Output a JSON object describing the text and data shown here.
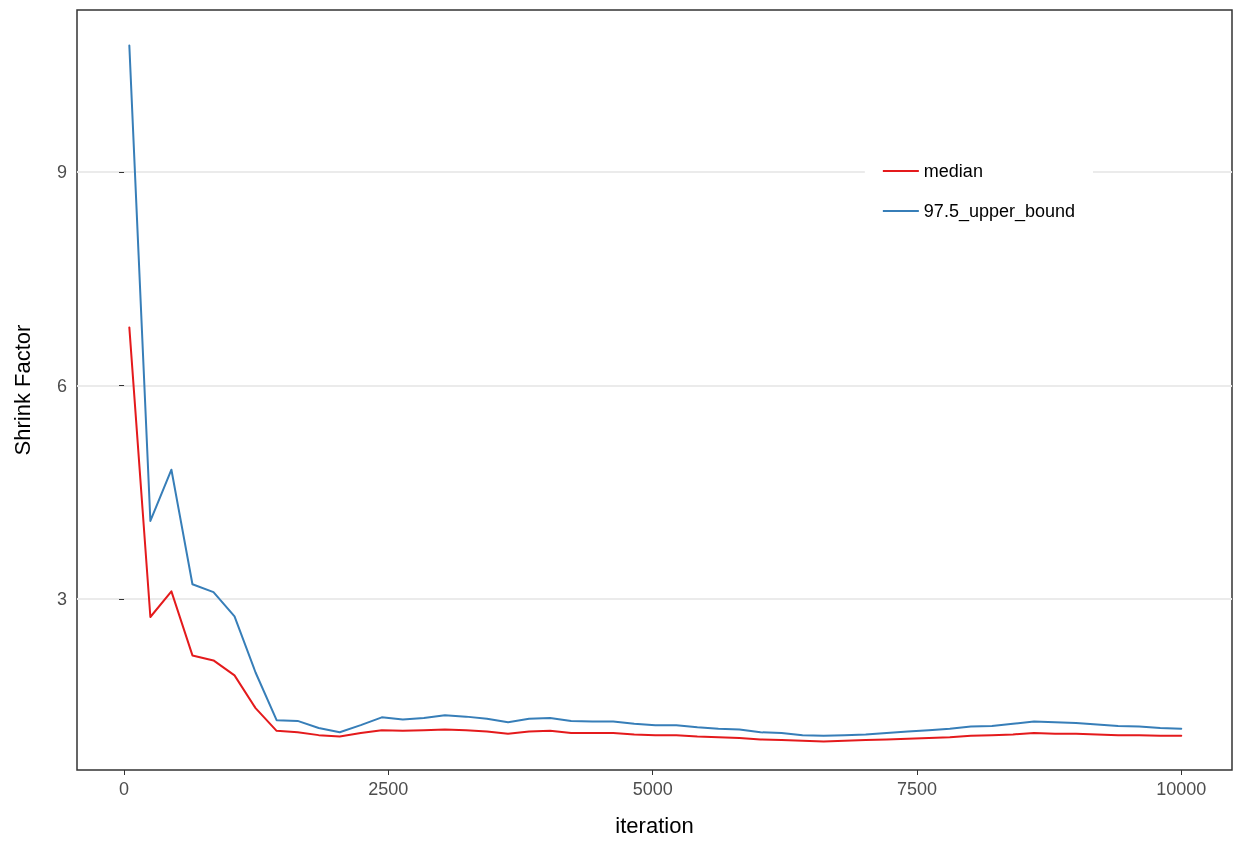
{
  "chart_data": {
    "type": "line",
    "xlabel": "iteration",
    "ylabel": "Shrink Factor",
    "x": [
      50,
      249,
      448,
      647,
      846,
      1045,
      1244,
      1443,
      1642,
      1841,
      2040,
      2239,
      2438,
      2637,
      2836,
      3035,
      3234,
      3433,
      3632,
      3831,
      4030,
      4229,
      4428,
      4627,
      4826,
      5025,
      5224,
      5423,
      5622,
      5821,
      6020,
      6219,
      6418,
      6617,
      6816,
      7015,
      7214,
      7413,
      7612,
      7811,
      8010,
      8209,
      8408,
      8607,
      8806,
      9005,
      9204,
      9403,
      9602,
      9801,
      10000
    ],
    "series": [
      {
        "name": "median",
        "color": "#e41a1c",
        "values": [
          6.82,
          2.75,
          3.11,
          2.21,
          2.14,
          1.93,
          1.47,
          1.15,
          1.13,
          1.09,
          1.07,
          1.12,
          1.16,
          1.15,
          1.16,
          1.17,
          1.16,
          1.14,
          1.11,
          1.14,
          1.15,
          1.12,
          1.12,
          1.12,
          1.1,
          1.09,
          1.09,
          1.07,
          1.06,
          1.05,
          1.03,
          1.02,
          1.01,
          1.0,
          1.01,
          1.02,
          1.03,
          1.04,
          1.05,
          1.06,
          1.08,
          1.09,
          1.1,
          1.12,
          1.11,
          1.11,
          1.1,
          1.09,
          1.09,
          1.08,
          1.08
        ]
      },
      {
        "name": "97.5_upper_bound",
        "color": "#377eb8",
        "values": [
          10.78,
          4.1,
          4.82,
          3.21,
          3.1,
          2.76,
          1.97,
          1.3,
          1.29,
          1.19,
          1.13,
          1.23,
          1.34,
          1.31,
          1.33,
          1.37,
          1.35,
          1.32,
          1.27,
          1.32,
          1.33,
          1.29,
          1.28,
          1.28,
          1.25,
          1.23,
          1.23,
          1.2,
          1.18,
          1.17,
          1.13,
          1.12,
          1.09,
          1.08,
          1.09,
          1.1,
          1.12,
          1.14,
          1.16,
          1.18,
          1.21,
          1.22,
          1.25,
          1.28,
          1.27,
          1.26,
          1.24,
          1.22,
          1.21,
          1.19,
          1.18
        ]
      }
    ],
    "xlim": [
      -445,
      10480
    ],
    "xticks": [
      0,
      2500,
      5000,
      7500,
      10000
    ],
    "ylim": [
      0.6,
      11.28
    ],
    "yticks": [
      3,
      6,
      9
    ],
    "grid": "y",
    "legend": "top right",
    "marker": "none",
    "line_style": "solid"
  }
}
